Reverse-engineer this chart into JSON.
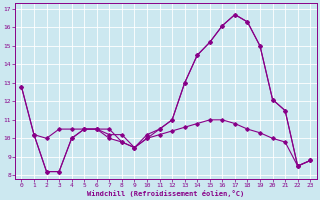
{
  "xlabel": "Windchill (Refroidissement éolien,°C)",
  "background_color": "#cce8f0",
  "line_color": "#880088",
  "xlim": [
    -0.5,
    23.5
  ],
  "ylim": [
    7.8,
    17.3
  ],
  "yticks": [
    8,
    9,
    10,
    11,
    12,
    13,
    14,
    15,
    16,
    17
  ],
  "xticks": [
    0,
    1,
    2,
    3,
    4,
    5,
    6,
    7,
    8,
    9,
    10,
    11,
    12,
    13,
    14,
    15,
    16,
    17,
    18,
    19,
    20,
    21,
    22,
    23
  ],
  "lines": [
    {
      "x": [
        0,
        1,
        2,
        3,
        4,
        5,
        6,
        7,
        8,
        9,
        10,
        11,
        12,
        13,
        14,
        15,
        16,
        17,
        18,
        19,
        20,
        21,
        22,
        23
      ],
      "y": [
        12.8,
        10.2,
        10.0,
        10.5,
        10.5,
        10.5,
        10.5,
        10.2,
        10.2,
        9.5,
        10.0,
        10.5,
        11.0,
        13.0,
        14.5,
        15.2,
        16.1,
        16.7,
        16.3,
        15.0,
        12.1,
        11.5,
        8.5,
        8.8
      ]
    },
    {
      "x": [
        0,
        1,
        2,
        3,
        4,
        5,
        6,
        7,
        8,
        9,
        10,
        11,
        12,
        13,
        14,
        15,
        16,
        17,
        18,
        19,
        20,
        21,
        22,
        23
      ],
      "y": [
        12.8,
        10.2,
        8.2,
        8.2,
        10.0,
        10.5,
        10.5,
        10.0,
        9.8,
        9.5,
        10.0,
        10.2,
        10.4,
        10.6,
        10.8,
        11.0,
        11.0,
        10.8,
        10.5,
        10.3,
        10.0,
        9.8,
        8.5,
        8.8
      ]
    },
    {
      "x": [
        1,
        2,
        3,
        4,
        5,
        6,
        7,
        8,
        9,
        10,
        11,
        12,
        13,
        14,
        15,
        16,
        17,
        18,
        19,
        20,
        21,
        22,
        23
      ],
      "y": [
        10.2,
        8.2,
        8.2,
        10.0,
        10.5,
        10.5,
        10.5,
        9.8,
        9.5,
        10.2,
        10.5,
        11.0,
        13.0,
        14.5,
        15.2,
        16.1,
        16.7,
        16.3,
        15.0,
        12.1,
        11.5,
        8.5,
        8.8
      ]
    }
  ]
}
